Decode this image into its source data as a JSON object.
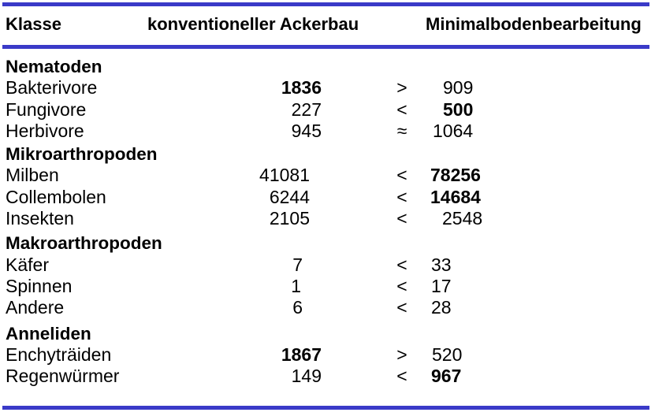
{
  "header": {
    "col_class": "Klasse",
    "col_conventional": "konventioneller Ackerbau",
    "col_minimal": "Minimalbodenbearbeitung"
  },
  "rows": [
    {
      "kind": "section",
      "label": "Nematoden"
    },
    {
      "kind": "item",
      "label": "Bakterivore",
      "conv": "1836",
      "conv_bold": true,
      "op": ">",
      "min": "909",
      "min_bold": false
    },
    {
      "kind": "item",
      "label": "Fungivore",
      "conv": "227",
      "conv_bold": false,
      "op": "<",
      "min": "500",
      "min_bold": true
    },
    {
      "kind": "item",
      "label": "Herbivore",
      "conv": "945",
      "conv_bold": false,
      "op": "≈",
      "min": "1064",
      "min_bold": false
    },
    {
      "kind": "section",
      "label": "Mikroarthropoden"
    },
    {
      "kind": "item",
      "label": "Milben",
      "conv": "41081",
      "conv_bold": false,
      "op": "<",
      "min": "78256",
      "min_bold": true
    },
    {
      "kind": "item",
      "label": "Collembolen",
      "conv": "6244",
      "conv_bold": false,
      "op": "<",
      "min": "14684",
      "min_bold": true
    },
    {
      "kind": "item",
      "label": "Insekten",
      "conv": "2105",
      "conv_bold": false,
      "op": "<",
      "min": "2548",
      "min_bold": false
    },
    {
      "kind": "section",
      "label": "Makroarthropoden"
    },
    {
      "kind": "item",
      "label": "Käfer",
      "conv": "7",
      "conv_bold": false,
      "op": "<",
      "min": "33",
      "min_bold": false
    },
    {
      "kind": "item",
      "label": "Spinnen",
      "conv": "1",
      "conv_bold": false,
      "op": "<",
      "min": "17",
      "min_bold": false
    },
    {
      "kind": "item",
      "label": "Andere",
      "conv": "6",
      "conv_bold": false,
      "op": "<",
      "min": "28",
      "min_bold": false
    },
    {
      "kind": "section",
      "label": "Anneliden"
    },
    {
      "kind": "item",
      "label": "Enchyträiden",
      "conv": "1867",
      "conv_bold": true,
      "op": ">",
      "min": "520",
      "min_bold": false
    },
    {
      "kind": "item",
      "label": "Regenwürmer",
      "conv": "149",
      "conv_bold": false,
      "op": "<",
      "min": "967",
      "min_bold": true
    }
  ]
}
